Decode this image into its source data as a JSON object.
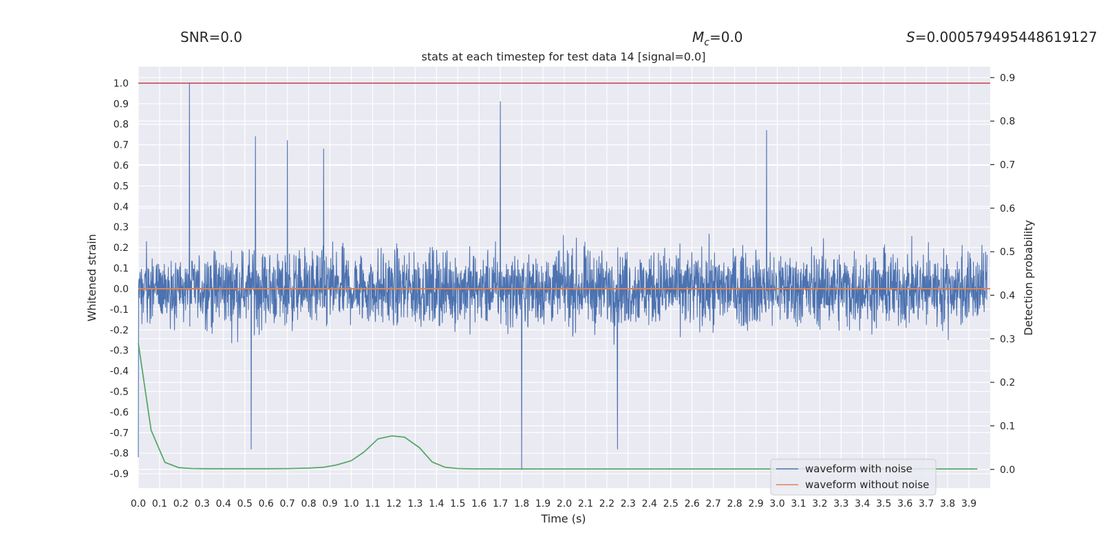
{
  "chart_data": {
    "type": "line",
    "title": "stats at each timestep for test data 14 [signal=0.0]",
    "stats": {
      "snr_label": "SNR=0.0",
      "mc_symbol": "M",
      "mc_subscript": "c",
      "mc_value": "=0.0",
      "s_symbol": "S",
      "s_value": "=0.000579495448619127"
    },
    "xlabel": "Time (s)",
    "ylabel": "Whitened strain",
    "y2label": "Detection probability",
    "xlim": [
      0.0,
      4.0
    ],
    "ylim": [
      -0.97,
      1.08
    ],
    "y2lim": [
      -0.043,
      0.925
    ],
    "xticks": [
      "0.0",
      "0.1",
      "0.2",
      "0.3",
      "0.4",
      "0.5",
      "0.6",
      "0.7",
      "0.8",
      "0.9",
      "1.0",
      "1.1",
      "1.2",
      "1.3",
      "1.4",
      "1.5",
      "1.6",
      "1.7",
      "1.8",
      "1.9",
      "2.0",
      "2.1",
      "2.2",
      "2.3",
      "2.4",
      "2.5",
      "2.6",
      "2.7",
      "2.8",
      "2.9",
      "3.0",
      "3.1",
      "3.2",
      "3.3",
      "3.4",
      "3.5",
      "3.6",
      "3.7",
      "3.8",
      "3.9"
    ],
    "yticks": [
      "1.0",
      "0.9",
      "0.8",
      "0.7",
      "0.6",
      "0.5",
      "0.4",
      "0.3",
      "0.2",
      "0.1",
      "0.0",
      "-0.1",
      "-0.2",
      "-0.3",
      "-0.4",
      "-0.5",
      "-0.6",
      "-0.7",
      "-0.8",
      "-0.9"
    ],
    "y2ticks": [
      "0.9",
      "0.8",
      "0.7",
      "0.6",
      "0.5",
      "0.4",
      "0.3",
      "0.2",
      "0.1",
      "0.0"
    ],
    "grid": true,
    "legend_position": "lower-right",
    "threshold_line": {
      "y": 1.0,
      "color": "#c44e52"
    },
    "series": [
      {
        "name": "waveform with noise",
        "color": "#4c72b0",
        "axis": "left",
        "description_note": "dense whitened-noise trace (~4000 samples)",
        "envelope_peaks": [
          {
            "x": 0.24,
            "y": 1.0
          },
          {
            "x": 1.7,
            "y": 0.91
          },
          {
            "x": 2.95,
            "y": 0.77
          },
          {
            "x": 0.55,
            "y": 0.74
          },
          {
            "x": 0.7,
            "y": 0.72
          },
          {
            "x": 0.87,
            "y": 0.68
          },
          {
            "x": 1.8,
            "y": -0.88
          },
          {
            "x": 0.0,
            "y": -0.82
          },
          {
            "x": 2.25,
            "y": -0.78
          },
          {
            "x": 0.53,
            "y": -0.78
          }
        ]
      },
      {
        "name": "waveform without noise",
        "color": "#dd8452",
        "axis": "left",
        "x": [
          0.0,
          4.0
        ],
        "y": [
          0.0,
          0.0
        ]
      },
      {
        "name": "",
        "color": "#55a868",
        "axis": "right",
        "x": [
          0.0,
          0.06,
          0.125,
          0.19,
          0.25,
          0.32,
          0.4,
          0.5,
          0.6,
          0.7,
          0.8,
          0.87,
          0.93,
          1.0,
          1.06,
          1.125,
          1.19,
          1.25,
          1.32,
          1.38,
          1.44,
          1.5,
          1.57,
          1.7,
          2.0,
          2.5,
          3.0,
          3.5,
          3.94
        ],
        "y": [
          0.29,
          0.09,
          0.016,
          0.004,
          0.002,
          0.0015,
          0.0015,
          0.0015,
          0.0015,
          0.0018,
          0.003,
          0.005,
          0.01,
          0.02,
          0.04,
          0.07,
          0.077,
          0.074,
          0.05,
          0.017,
          0.005,
          0.002,
          0.0012,
          0.001,
          0.001,
          0.001,
          0.001,
          0.001,
          0.001
        ]
      }
    ]
  }
}
